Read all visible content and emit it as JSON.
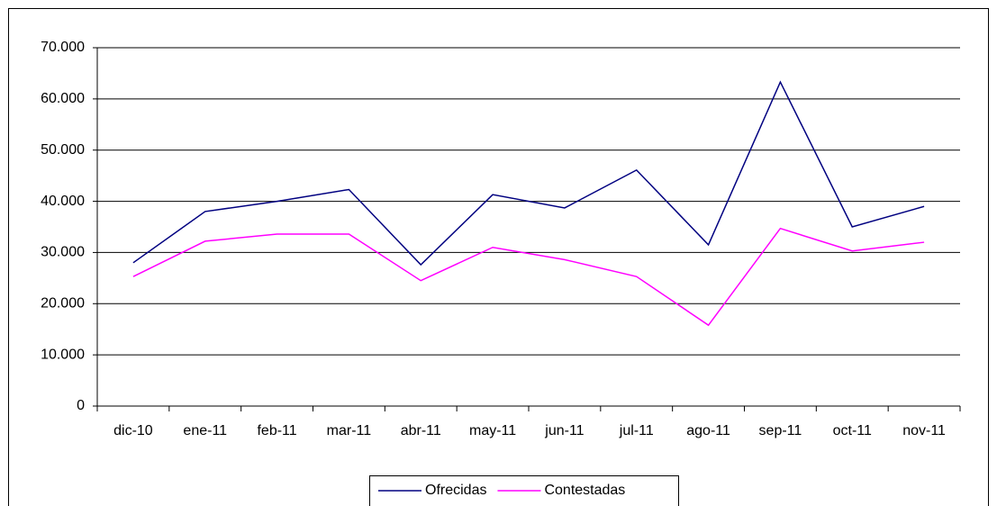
{
  "chart_data": {
    "type": "line",
    "categories": [
      "dic-10",
      "ene-11",
      "feb-11",
      "mar-11",
      "abr-11",
      "may-11",
      "jun-11",
      "jul-11",
      "ago-11",
      "sep-11",
      "oct-11",
      "nov-11"
    ],
    "series": [
      {
        "name": "Ofrecidas",
        "color": "#000080",
        "values": [
          28000,
          38000,
          40000,
          42300,
          27600,
          41300,
          38700,
          46100,
          31500,
          63300,
          35000,
          39000
        ]
      },
      {
        "name": "Contestadas",
        "color": "#ff00ff",
        "values": [
          25300,
          32200,
          33600,
          33600,
          24500,
          31000,
          28600,
          25300,
          15800,
          34700,
          30300,
          32000
        ]
      }
    ],
    "ylim": [
      0,
      70000
    ],
    "yticks": [
      0,
      {
        "value": 10000,
        "label": "10.000"
      },
      {
        "value": 20000,
        "label": "20.000"
      },
      {
        "value": 30000,
        "label": "30.000"
      },
      {
        "value": 40000,
        "label": "40.000"
      },
      {
        "value": 50000,
        "label": "50.000"
      },
      {
        "value": 60000,
        "label": "60.000"
      },
      {
        "value": 70000,
        "label": "70.000"
      }
    ],
    "grid": true,
    "legend": "bottom"
  }
}
